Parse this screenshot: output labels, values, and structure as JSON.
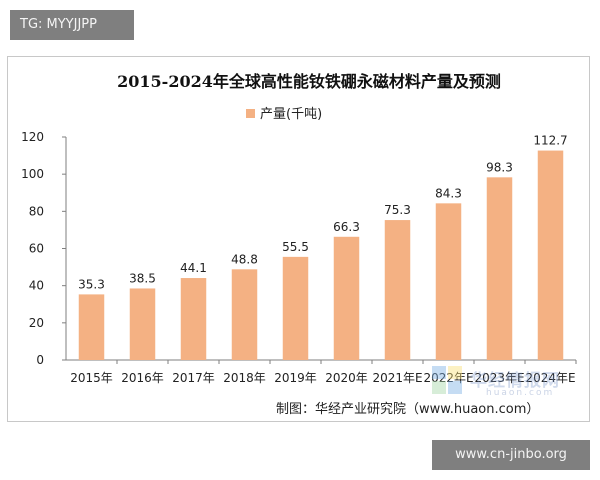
{
  "tag": "TG: MYYJJPP",
  "site_badge": "www.cn-jinbo.org",
  "watermark": "华经情报网",
  "watermark_sub": "huaon.com",
  "colors": {
    "bar": "#f4b183",
    "axis": "#7f7f7f",
    "wm1": "#7fb2e5",
    "wm2": "#f9e07a",
    "wm3": "#a6d8a8"
  },
  "chart_data": {
    "type": "bar",
    "title": "2015-2024年全球高性能钕铁硼永磁材料产量及预测",
    "legend": "产量(千吨)",
    "legend_position": "top-center",
    "categories": [
      "2015年",
      "2016年",
      "2017年",
      "2018年",
      "2019年",
      "2020年",
      "2021年E",
      "2022年E",
      "2023年E",
      "2024年E"
    ],
    "series": [
      {
        "name": "产量(千吨)",
        "values": [
          35.3,
          38.5,
          44.1,
          48.8,
          55.5,
          66.3,
          75.3,
          84.3,
          98.3,
          112.7
        ]
      }
    ],
    "ylim": [
      0,
      120
    ],
    "yticks": [
      0,
      20,
      40,
      60,
      80,
      100,
      120
    ],
    "grid": false,
    "source": "制图：华经产业研究院（www.huaon.com）"
  }
}
